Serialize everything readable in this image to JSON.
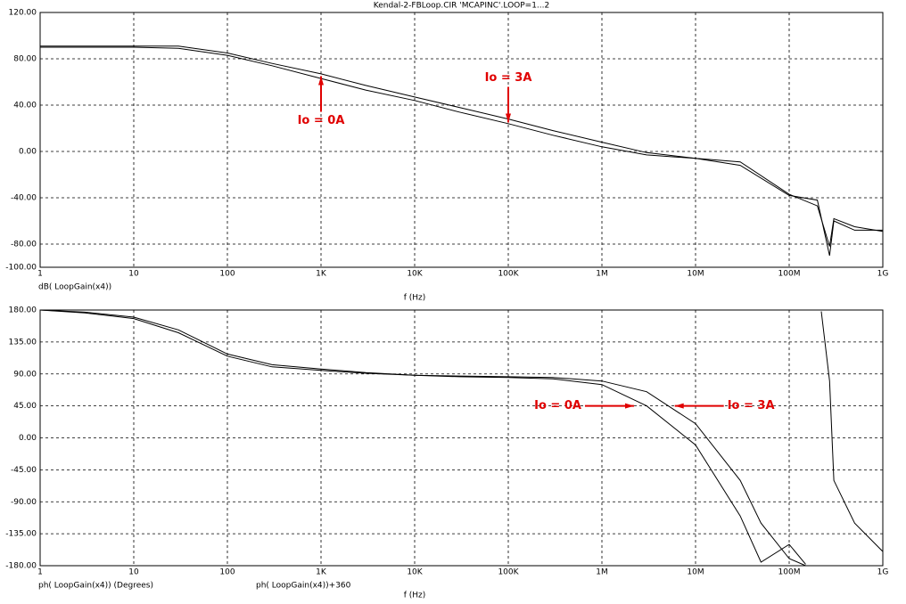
{
  "chart_data": [
    {
      "type": "line",
      "title": "Kendal-2-FBLoop.CIR 'MCAPINC'.LOOP=1...2",
      "xscale": "log",
      "grid": true,
      "x_label": "f (Hz)",
      "y_labels": [
        "dB( LoopGain(x4))"
      ],
      "xlim": [
        1,
        1000000000
      ],
      "xticks": [
        1,
        10,
        100,
        {
          "value": 1000,
          "label": "1K"
        },
        {
          "value": 10000,
          "label": "10K"
        },
        {
          "value": 100000,
          "label": "100K"
        },
        {
          "value": 1000000,
          "label": "1M"
        },
        {
          "value": 10000000,
          "label": "10M"
        },
        {
          "value": 100000000,
          "label": "100M"
        },
        {
          "value": 1000000000,
          "label": "1G"
        }
      ],
      "ylim": [
        -100,
        120
      ],
      "yticks": [
        {
          "value": 120,
          "label": "120.00"
        },
        {
          "value": 80,
          "label": "80.00"
        },
        {
          "value": 40,
          "label": "40.00"
        },
        {
          "value": 0,
          "label": "0.00"
        },
        {
          "value": -40,
          "label": "-40.00"
        },
        {
          "value": -80,
          "label": "-80.00"
        },
        {
          "value": -100,
          "label": "-100.00"
        }
      ],
      "x": [
        1,
        3,
        10,
        30,
        100,
        300,
        1000,
        3000,
        10000,
        30000,
        100000,
        300000,
        1000000,
        3000000,
        10000000,
        30000000,
        100000000,
        200000000,
        270000000,
        300000000,
        500000000,
        1000000000
      ],
      "series": [
        {
          "color": "#000000",
          "values": [
            91,
            91,
            91,
            91,
            85,
            76,
            67,
            57,
            47,
            38,
            28,
            18,
            8,
            -1,
            -6,
            -12,
            -38,
            -42,
            -90,
            -60,
            -68,
            -68
          ]
        },
        {
          "color": "#000000",
          "values": [
            90,
            90,
            90,
            89,
            83,
            74,
            63,
            53,
            44,
            34,
            24,
            14,
            4,
            -3,
            -6,
            -9,
            -37,
            -47,
            -82,
            -58,
            -65,
            -69
          ]
        }
      ],
      "annotations": [
        {
          "text": "Io = 0A",
          "x": 1000,
          "y": 65,
          "arrow": "up",
          "color": "#e00000"
        },
        {
          "text": "Io = 3A",
          "x": 100000,
          "y": 25,
          "arrow": "down",
          "color": "#e00000"
        }
      ]
    },
    {
      "type": "line",
      "xscale": "log",
      "grid": true,
      "x_label": "f (Hz)",
      "y_labels": [
        "ph( LoopGain(x4)) (Degrees)",
        "ph( LoopGain(x4))+360"
      ],
      "xlim": [
        1,
        1000000000
      ],
      "xticks": [
        1,
        10,
        100,
        {
          "value": 1000,
          "label": "1K"
        },
        {
          "value": 10000,
          "label": "10K"
        },
        {
          "value": 100000,
          "label": "100K"
        },
        {
          "value": 1000000,
          "label": "1M"
        },
        {
          "value": 10000000,
          "label": "10M"
        },
        {
          "value": 100000000,
          "label": "100M"
        },
        {
          "value": 1000000000,
          "label": "1G"
        }
      ],
      "ylim": [
        -180,
        180
      ],
      "yticks": [
        {
          "value": 180,
          "label": "180.00"
        },
        {
          "value": 135,
          "label": "135.00"
        },
        {
          "value": 90,
          "label": "90.00"
        },
        {
          "value": 45,
          "label": "45.00"
        },
        {
          "value": 0,
          "label": "0.00"
        },
        {
          "value": -45,
          "label": "-45.00"
        },
        {
          "value": -90,
          "label": "-90.00"
        },
        {
          "value": -135,
          "label": "-135.00"
        },
        {
          "value": -180,
          "label": "-180.00"
        }
      ],
      "x": [
        1,
        3,
        10,
        30,
        100,
        300,
        1000,
        3000,
        10000,
        30000,
        100000,
        300000,
        1000000,
        3000000,
        10000000,
        30000000,
        50000000,
        100000000,
        150000000,
        200000000,
        220000000,
        270000000,
        300000000,
        500000000,
        1000000000
      ],
      "series": [
        {
          "color": "#000000",
          "values": [
            180,
            177,
            170,
            152,
            118,
            103,
            97,
            92,
            88,
            86,
            85,
            83,
            75,
            45,
            -10,
            -110,
            -175,
            -150,
            -178,
            null,
            178,
            80,
            -60,
            -120,
            -160
          ]
        },
        {
          "color": "#000000",
          "values": [
            180,
            176,
            168,
            148,
            115,
            100,
            95,
            91,
            88,
            87,
            86,
            85,
            80,
            65,
            20,
            -60,
            -120,
            -170,
            -180,
            null,
            null,
            null,
            null,
            null,
            null
          ]
        }
      ],
      "annotations": [
        {
          "text": "Io = 0A",
          "x": 2200000,
          "y": 45,
          "arrow": "right",
          "color": "#e00000"
        },
        {
          "text": "Io = 3A",
          "x": 6000000,
          "y": 45,
          "arrow": "left",
          "color": "#e00000"
        }
      ]
    }
  ]
}
